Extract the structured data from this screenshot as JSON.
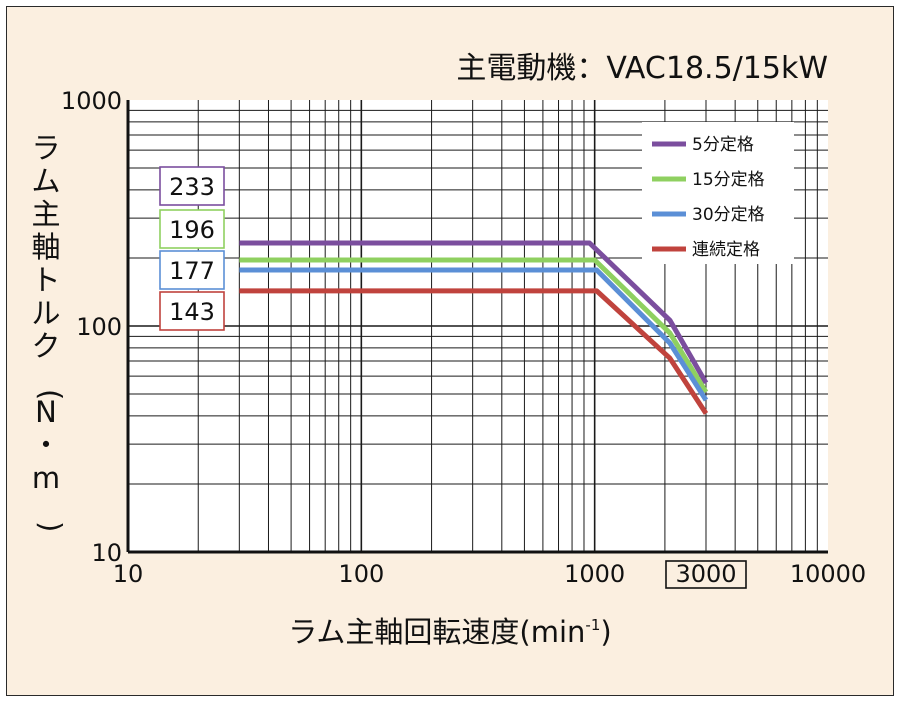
{
  "chart_data": {
    "type": "line",
    "title": "主電動機：VAC18.5/15kW",
    "xlabel": "ラム主軸回転速度(min",
    "xlabel_superscript": "-1",
    "xlabel_close": ")",
    "ylabel": "ラム主軸トルク(N・m)",
    "xscale": "log",
    "yscale": "log",
    "xlim": [
      10,
      10000
    ],
    "ylim": [
      10,
      1000
    ],
    "xticks": [
      {
        "value": 10,
        "label": "10"
      },
      {
        "value": 100,
        "label": "100"
      },
      {
        "value": 1000,
        "label": "1000"
      },
      {
        "value": 3000,
        "label": "3000",
        "boxed": true
      },
      {
        "value": 10000,
        "label": "10000"
      }
    ],
    "yticks": [
      {
        "value": 10,
        "label": "10"
      },
      {
        "value": 100,
        "label": "100"
      },
      {
        "value": 1000,
        "label": "1000"
      }
    ],
    "grid": true,
    "legend_position": "top-right",
    "series": [
      {
        "name": "5分定格",
        "color": "#7b4e9e",
        "label": "233",
        "points": [
          [
            30,
            233
          ],
          [
            950,
            233
          ],
          [
            2100,
            106
          ],
          [
            3000,
            56
          ]
        ]
      },
      {
        "name": "15分定格",
        "color": "#8fd060",
        "label": "196",
        "points": [
          [
            30,
            196
          ],
          [
            1000,
            196
          ],
          [
            2100,
            93
          ],
          [
            3000,
            51
          ]
        ]
      },
      {
        "name": "30分定格",
        "color": "#5b8fd6",
        "label": "177",
        "points": [
          [
            30,
            177
          ],
          [
            1020,
            177
          ],
          [
            2100,
            84
          ],
          [
            3000,
            47
          ]
        ]
      },
      {
        "name": "連続定格",
        "color": "#c0433d",
        "label": "143",
        "points": [
          [
            30,
            143
          ],
          [
            1020,
            143
          ],
          [
            2100,
            72
          ],
          [
            3000,
            41
          ]
        ]
      }
    ]
  }
}
